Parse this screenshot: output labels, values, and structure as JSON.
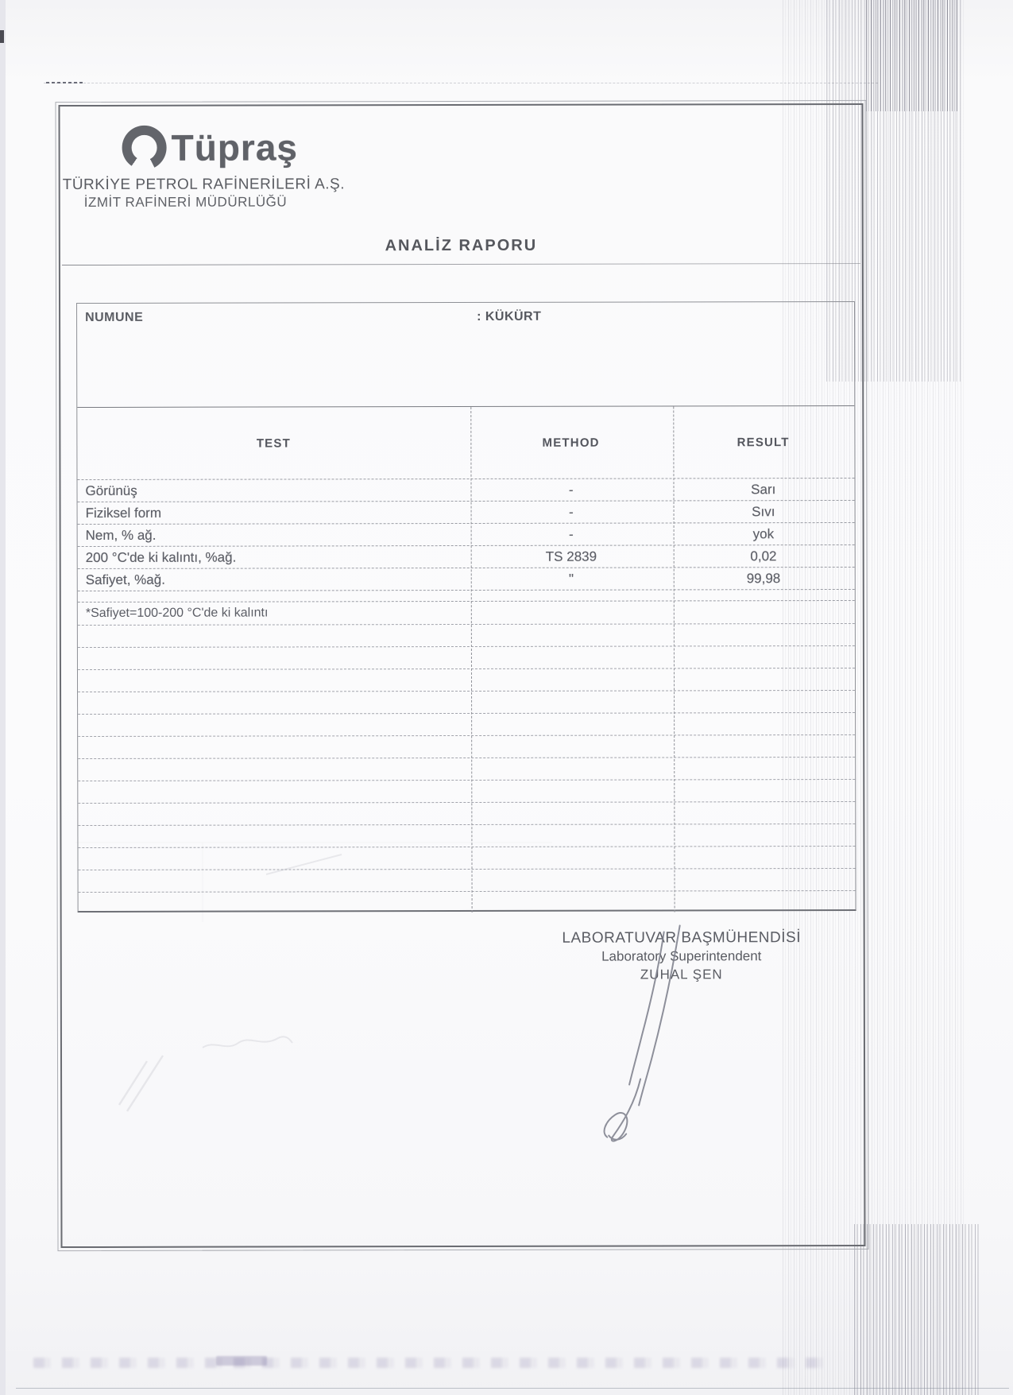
{
  "colors": {
    "ink": "#5d5f66",
    "line": "#8f9198",
    "paper": "#fafafb"
  },
  "header": {
    "logo_text": "Tüpraş",
    "company_line1": "TÜRKİYE PETROL RAFİNERİLERİ A.Ş.",
    "company_line2": "İZMİT RAFİNERİ MÜDÜRLÜĞÜ",
    "report_title": "ANALİZ RAPORU"
  },
  "sample": {
    "label": "NUMUNE",
    "value": ": KÜKÜRT"
  },
  "table": {
    "headers": {
      "test": "TEST",
      "method": "METHOD",
      "result": "RESULT"
    },
    "rows": [
      {
        "test": "Görünüş",
        "method": "-",
        "result": "Sarı"
      },
      {
        "test": "Fiziksel  form",
        "method": "-",
        "result": "Sıvı"
      },
      {
        "test": "Nem, % ağ.",
        "method": "-",
        "result": "yok"
      },
      {
        "test": "200 °C'de ki kalıntı, %ağ.",
        "method": "TS 2839",
        "result": "0,02"
      },
      {
        "test": "Safiyet, %ağ.",
        "method": "\"",
        "result": "99,98"
      }
    ],
    "footnote": "*Safiyet=100-200 °C'de ki kalıntı",
    "empty_row_count": 13
  },
  "signature": {
    "title_tr": "LABORATUVAR BAŞMÜHENDİSİ",
    "title_en": "Laboratory Superintendent",
    "name": "ZUHAL ŞEN"
  }
}
